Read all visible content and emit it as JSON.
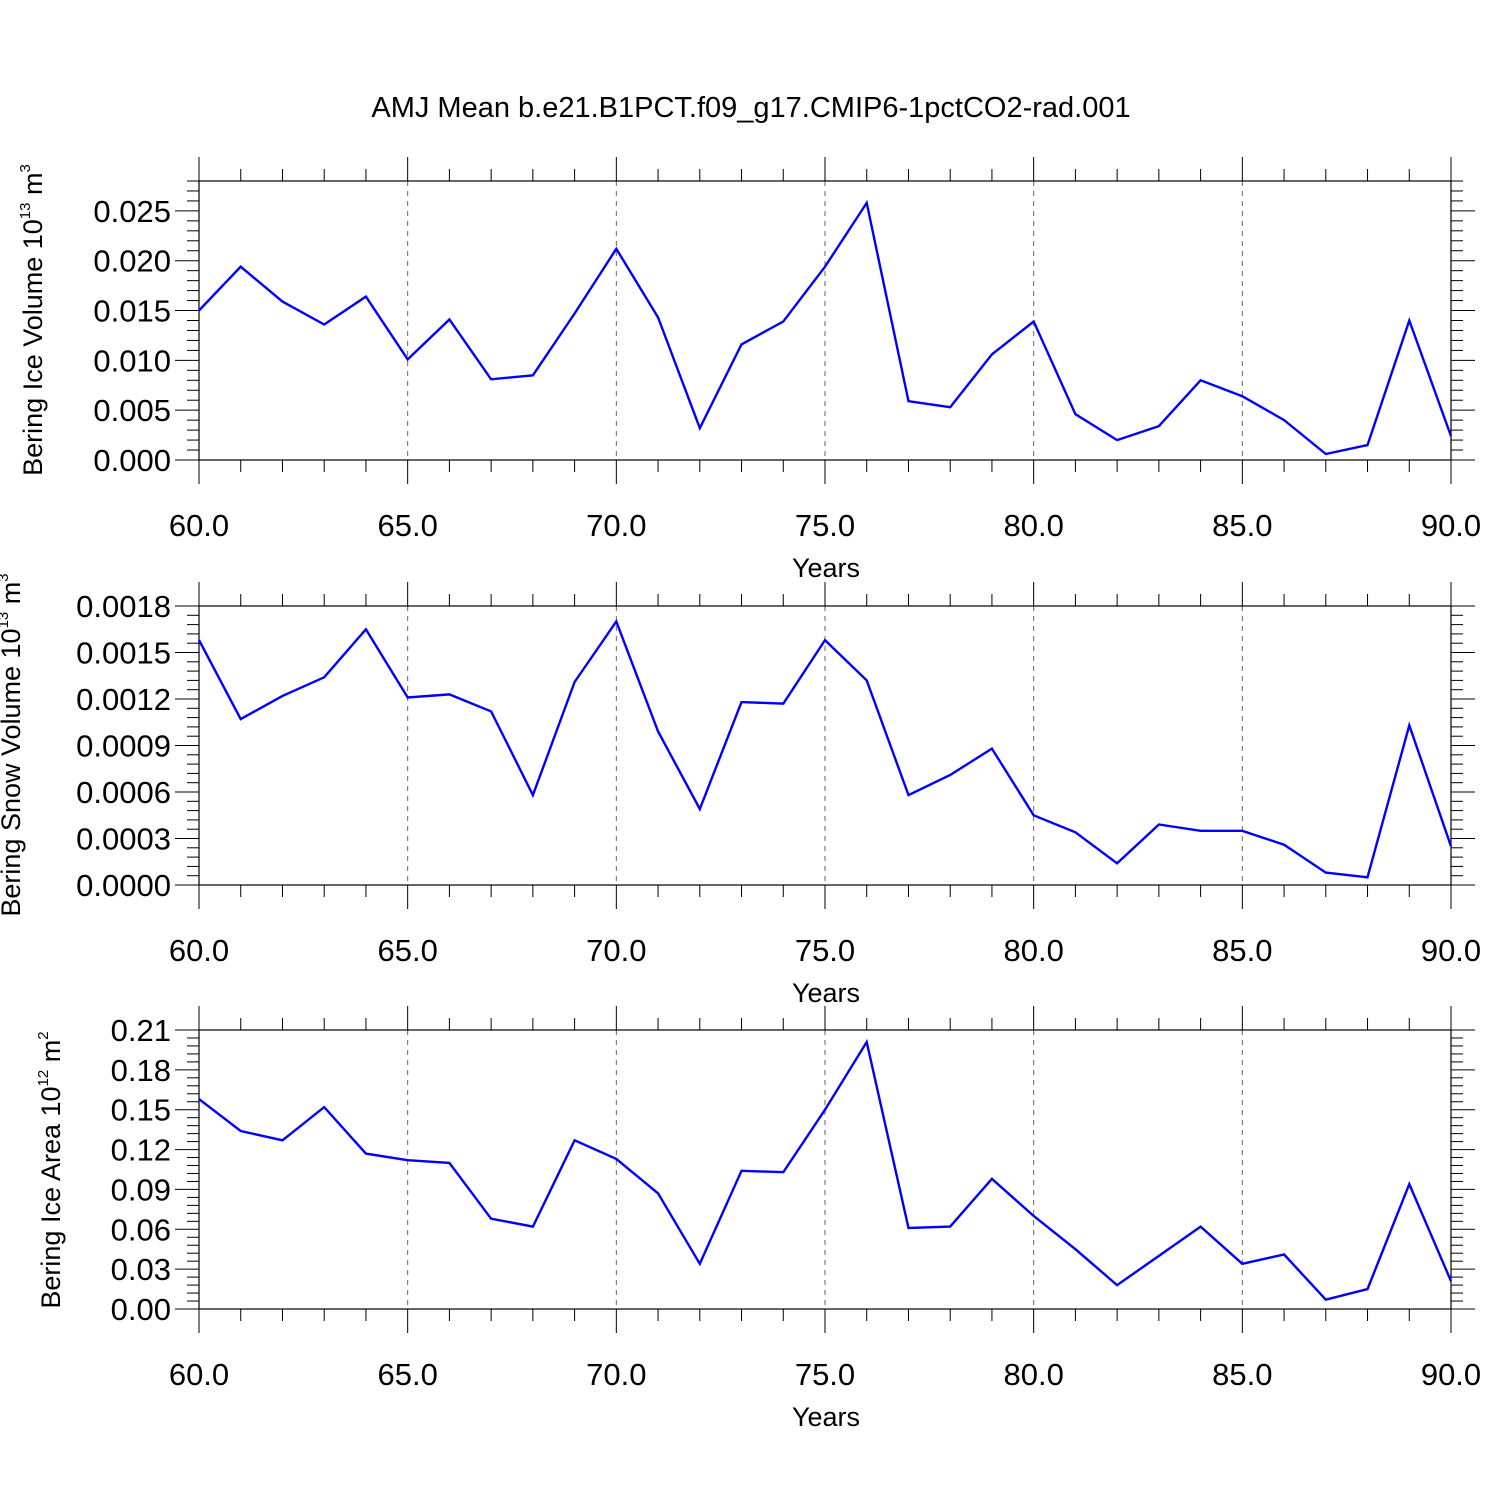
{
  "title": "AMJ Mean b.e21.B1PCT.f09_g17.CMIP6-1pctCO2-rad.001",
  "series_color": "#0000ff",
  "chart_data": [
    {
      "type": "line",
      "title": "",
      "xlabel": "Years",
      "ylabel": {
        "base": "Bering Ice Volume 10",
        "exp": "13",
        "unit": " m",
        "unit_exp": "3"
      },
      "xlim": [
        60,
        90
      ],
      "ylim": [
        0.0,
        0.028
      ],
      "xticks": [
        "60.0",
        "65.0",
        "70.0",
        "75.0",
        "80.0",
        "85.0",
        "90.0"
      ],
      "yticks": [
        "0.000",
        "0.005",
        "0.010",
        "0.015",
        "0.020",
        "0.025"
      ],
      "ytick_values": [
        0.0,
        0.005,
        0.01,
        0.015,
        0.02,
        0.025
      ],
      "grid": "vertical dashed at major x ticks",
      "x": [
        60,
        61,
        62,
        63,
        64,
        65,
        66,
        67,
        68,
        69,
        70,
        71,
        72,
        73,
        74,
        75,
        76,
        77,
        78,
        79,
        80,
        81,
        82,
        83,
        84,
        85,
        86,
        87,
        88,
        89,
        90
      ],
      "values": [
        0.015,
        0.0194,
        0.0159,
        0.0136,
        0.0164,
        0.0101,
        0.0141,
        0.0081,
        0.0085,
        0.0147,
        0.0212,
        0.0143,
        0.0032,
        0.0116,
        0.0139,
        0.0194,
        0.0258,
        0.0059,
        0.0053,
        0.0106,
        0.0139,
        0.0046,
        0.002,
        0.0034,
        0.008,
        0.0064,
        0.004,
        0.0006,
        0.0015,
        0.014,
        0.0024
      ]
    },
    {
      "type": "line",
      "title": "",
      "xlabel": "Years",
      "ylabel": {
        "base": "Bering Snow Volume 10",
        "exp": "13",
        "unit": " m",
        "unit_exp": "3"
      },
      "xlim": [
        60,
        90
      ],
      "ylim": [
        0.0,
        0.0018
      ],
      "xticks": [
        "60.0",
        "65.0",
        "70.0",
        "75.0",
        "80.0",
        "85.0",
        "90.0"
      ],
      "yticks": [
        "0.0000",
        "0.0003",
        "0.0006",
        "0.0009",
        "0.0012",
        "0.0015",
        "0.0018"
      ],
      "ytick_values": [
        0.0,
        0.0003,
        0.0006,
        0.0009,
        0.0012,
        0.0015,
        0.0018
      ],
      "grid": "vertical dashed at major x ticks",
      "x": [
        60,
        61,
        62,
        63,
        64,
        65,
        66,
        67,
        68,
        69,
        70,
        71,
        72,
        73,
        74,
        75,
        76,
        77,
        78,
        79,
        80,
        81,
        82,
        83,
        84,
        85,
        86,
        87,
        88,
        89,
        90
      ],
      "values": [
        0.00158,
        0.00107,
        0.00122,
        0.00134,
        0.00165,
        0.00121,
        0.00123,
        0.00112,
        0.00058,
        0.00131,
        0.0017,
        0.00099,
        0.00049,
        0.00118,
        0.00117,
        0.00158,
        0.00132,
        0.00058,
        0.00071,
        0.00088,
        0.00045,
        0.00034,
        0.00014,
        0.00039,
        0.00035,
        0.00035,
        0.00026,
        8e-05,
        5e-05,
        0.00103,
        0.00025
      ]
    },
    {
      "type": "line",
      "title": "",
      "xlabel": "Years",
      "ylabel": {
        "base": "Bering Ice Area 10",
        "exp": "12",
        "unit": " m",
        "unit_exp": "2"
      },
      "xlim": [
        60,
        90
      ],
      "ylim": [
        0.0,
        0.21
      ],
      "xticks": [
        "60.0",
        "65.0",
        "70.0",
        "75.0",
        "80.0",
        "85.0",
        "90.0"
      ],
      "yticks": [
        "0.00",
        "0.03",
        "0.06",
        "0.09",
        "0.12",
        "0.15",
        "0.18",
        "0.21"
      ],
      "ytick_values": [
        0.0,
        0.03,
        0.06,
        0.09,
        0.12,
        0.15,
        0.18,
        0.21
      ],
      "grid": "vertical dashed at major x ticks",
      "x": [
        60,
        61,
        62,
        63,
        64,
        65,
        66,
        67,
        68,
        69,
        70,
        71,
        72,
        73,
        74,
        75,
        76,
        77,
        78,
        79,
        80,
        81,
        82,
        83,
        84,
        85,
        86,
        87,
        88,
        89,
        90
      ],
      "values": [
        0.158,
        0.134,
        0.127,
        0.152,
        0.117,
        0.112,
        0.11,
        0.068,
        0.062,
        0.127,
        0.113,
        0.087,
        0.034,
        0.104,
        0.103,
        0.15,
        0.201,
        0.061,
        0.062,
        0.098,
        0.07,
        0.045,
        0.018,
        0.04,
        0.062,
        0.034,
        0.041,
        0.007,
        0.015,
        0.094,
        0.021
      ]
    }
  ]
}
